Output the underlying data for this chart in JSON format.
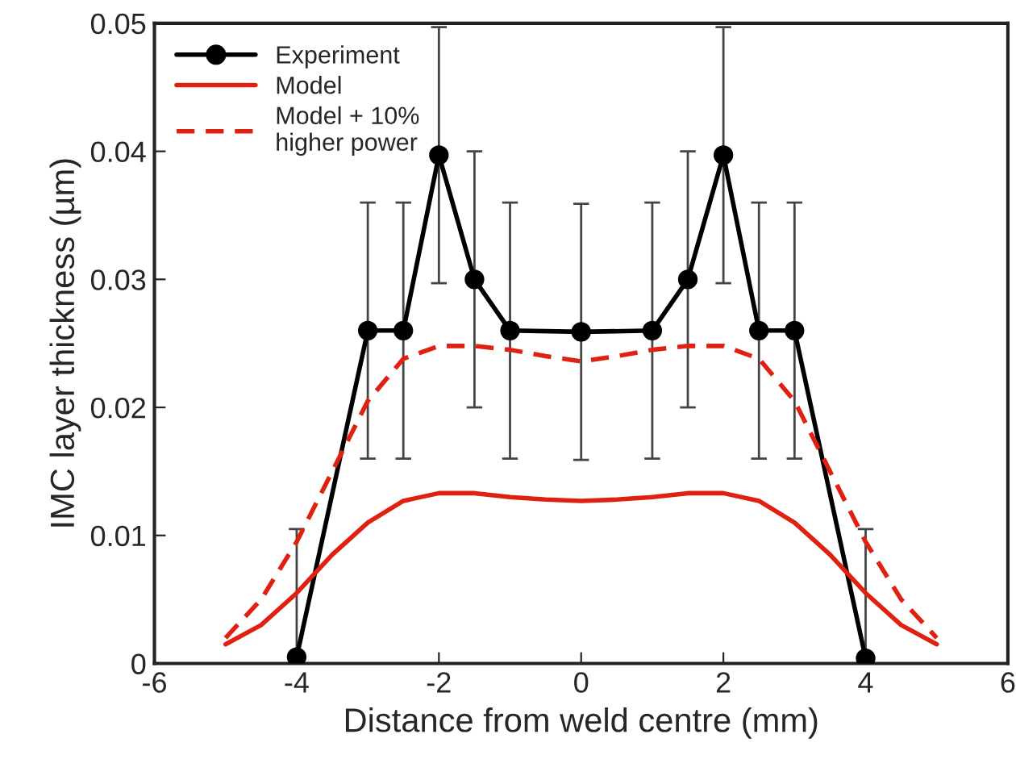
{
  "chart_data": {
    "type": "line",
    "xlabel": "Distance from weld centre (mm)",
    "ylabel": "IMC layer thickness (µm)",
    "xlim": [
      -6,
      6
    ],
    "xticks": [
      -6,
      -4,
      -2,
      0,
      2,
      4,
      6
    ],
    "ylim": [
      0,
      0.05
    ],
    "yticks": [
      0,
      0.01,
      0.02,
      0.03,
      0.04,
      0.05
    ],
    "grid": false,
    "legend": "top left",
    "series": [
      {
        "name": "Experiment",
        "color": "#000000",
        "marker": "circle",
        "line_style": "solid",
        "x": [
          -4,
          -3,
          -2.5,
          -2,
          -1.5,
          -1,
          0,
          1,
          1.5,
          2,
          2.5,
          3,
          4
        ],
        "values": [
          0.0005,
          0.026,
          0.026,
          0.0397,
          0.03,
          0.026,
          0.0259,
          0.026,
          0.03,
          0.0397,
          0.026,
          0.026,
          0.0004
        ],
        "errors": [
          [
            0,
            0.0105
          ],
          0.01,
          0.01,
          0.01,
          0.01,
          0.01,
          0.01,
          0.01,
          0.01,
          0.01,
          0.01,
          0.01,
          [
            0,
            0.0105
          ]
        ]
      },
      {
        "name": "Model",
        "color": "#e02010",
        "marker": "none",
        "line_style": "solid",
        "x": [
          -5,
          -4.5,
          -4,
          -3.5,
          -3,
          -2.5,
          -2,
          -1.5,
          -1,
          -0.5,
          0,
          0.5,
          1,
          1.5,
          2,
          2.5,
          3,
          3.5,
          4,
          4.5,
          5
        ],
        "values": [
          0.0015,
          0.003,
          0.0055,
          0.0085,
          0.011,
          0.0127,
          0.0133,
          0.0133,
          0.013,
          0.0128,
          0.0127,
          0.0128,
          0.013,
          0.0133,
          0.0133,
          0.0127,
          0.011,
          0.0085,
          0.0055,
          0.003,
          0.0015
        ]
      },
      {
        "name": "Model + 10%\nhigher power",
        "color": "#e02010",
        "marker": "none",
        "line_style": "dashed",
        "x": [
          -5,
          -4.5,
          -4,
          -3.5,
          -3,
          -2.5,
          -2,
          -1.5,
          -1,
          -0.5,
          0,
          0.5,
          1,
          1.5,
          2,
          2.5,
          3,
          3.5,
          4,
          4.5,
          5
        ],
        "values": [
          0.002,
          0.005,
          0.0095,
          0.015,
          0.0205,
          0.0238,
          0.0248,
          0.0248,
          0.0245,
          0.024,
          0.0236,
          0.024,
          0.0245,
          0.0248,
          0.0248,
          0.0238,
          0.0205,
          0.015,
          0.0095,
          0.005,
          0.002
        ]
      }
    ]
  }
}
